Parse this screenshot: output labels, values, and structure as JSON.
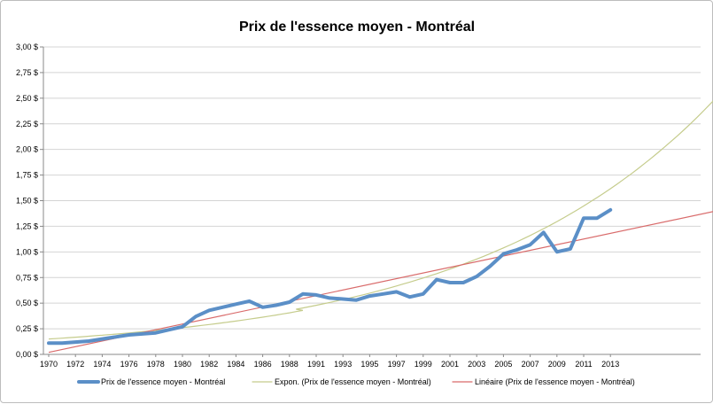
{
  "chart_data": {
    "type": "line",
    "title": "Prix de l'essence moyen - Montréal",
    "xlabel": "",
    "ylabel": "",
    "ylim": [
      0,
      3
    ],
    "y_ticks": [
      "0,00 $",
      "0,25 $",
      "0,50 $",
      "0,75 $",
      "1,00 $",
      "1,25 $",
      "1,50 $",
      "1,75 $",
      "2,00 $",
      "2,25 $",
      "2,50 $",
      "2,75 $",
      "3,00 $"
    ],
    "x_tick_labels": [
      "1970",
      "1972",
      "1974",
      "1976",
      "1978",
      "1980",
      "1982",
      "1984",
      "1986",
      "1988",
      "1991",
      "1993",
      "1995",
      "1997",
      "1999",
      "2001",
      "2003",
      "2005",
      "2007",
      "2009",
      "2011",
      "2013"
    ],
    "grid": "horizontal",
    "legend_position": "bottom",
    "x": [
      1970,
      1971,
      1972,
      1973,
      1974,
      1975,
      1976,
      1977,
      1978,
      1979,
      1980,
      1981,
      1982,
      1983,
      1984,
      1985,
      1986,
      1987,
      1988,
      1989,
      1991,
      1992,
      1993,
      1994,
      1995,
      1996,
      1997,
      1998,
      1999,
      2000,
      2001,
      2002,
      2003,
      2004,
      2005,
      2006,
      2007,
      2008,
      2009,
      2010,
      2011,
      2012,
      2013
    ],
    "series": [
      {
        "name": "Prix de l'essence moyen - Montréal",
        "color": "#5b8fc7",
        "values": [
          0.11,
          0.11,
          0.12,
          0.13,
          0.15,
          0.17,
          0.19,
          0.2,
          0.21,
          0.24,
          0.27,
          0.37,
          0.43,
          0.46,
          0.49,
          0.52,
          0.46,
          0.48,
          0.51,
          0.59,
          0.58,
          0.55,
          0.54,
          0.53,
          0.57,
          0.59,
          0.61,
          0.56,
          0.59,
          0.73,
          0.7,
          0.7,
          0.76,
          0.86,
          0.98,
          1.02,
          1.07,
          1.19,
          1.0,
          1.03,
          1.33,
          1.33,
          1.41
        ]
      }
    ],
    "trendlines": [
      {
        "name": "Expon. (Prix de l'essence moyen - Montréal)",
        "color": "#c5cc8c",
        "kind": "exponential",
        "x": [
          1970,
          1975,
          1980,
          1985,
          1990,
          1995,
          2000,
          2005,
          2010,
          2013,
          2015,
          2018,
          2020,
          2022
        ],
        "values": [
          0.15,
          0.19,
          0.25,
          0.33,
          0.42,
          0.55,
          0.71,
          0.95,
          1.25,
          1.5,
          1.68,
          2.0,
          2.3,
          2.66
        ]
      },
      {
        "name": "Linéaire (Prix de l'essence moyen - Montréal)",
        "color": "#d96b6b",
        "kind": "linear",
        "x": [
          1970,
          2022
        ],
        "values": [
          0.02,
          1.43
        ]
      }
    ]
  }
}
